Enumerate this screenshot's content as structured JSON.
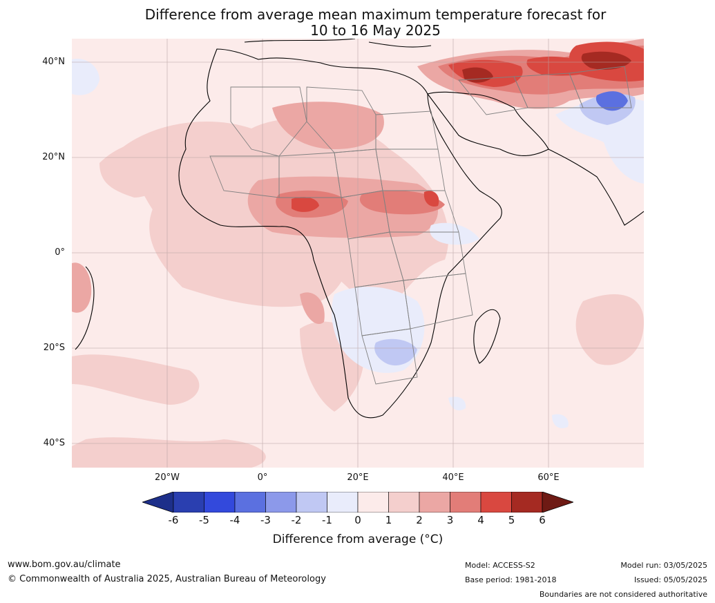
{
  "title": {
    "line1": "Difference from average mean maximum temperature forecast for",
    "line2": "10 to 16 May 2025"
  },
  "axes": {
    "lat_labels": [
      "40°N",
      "20°N",
      "0°",
      "20°S",
      "40°S"
    ],
    "lon_labels": [
      "20°W",
      "0°",
      "20°E",
      "40°E",
      "60°E"
    ]
  },
  "colorbar": {
    "labels": [
      "-6",
      "-5",
      "-4",
      "-3",
      "-2",
      "-1",
      "0",
      "1",
      "2",
      "3",
      "4",
      "5",
      "6"
    ],
    "colors": [
      "#1d2f8a",
      "#2a3fb0",
      "#3349dc",
      "#5b70e0",
      "#8c99ea",
      "#c0c8f3",
      "#e9ecfb",
      "#fcebea",
      "#f4cfcd",
      "#eba7a4",
      "#e27d78",
      "#d94840",
      "#a52a22",
      "#6e1a14"
    ],
    "title": "Difference from average (°C)"
  },
  "footer": {
    "site": "www.bom.gov.au/climate",
    "copyright": "© Commonwealth of Australia 2025, Australian Bureau of Meteorology",
    "model": "Model: ACCESS-S2",
    "base_period": "Base period: 1981-2018",
    "model_run": "Model run: 03/05/2025",
    "issued": "Issued: 05/05/2025",
    "boundaries": "Boundaries are not considered authoritative"
  }
}
